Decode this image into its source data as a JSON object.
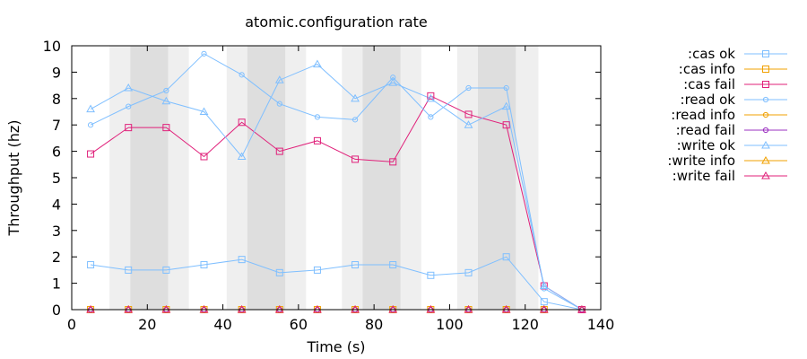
{
  "chart_data": {
    "type": "line",
    "title": "atomic.configuration rate",
    "xlabel": "Time (s)",
    "ylabel": "Throughput (hz)",
    "xlim": [
      0,
      140
    ],
    "ylim": [
      0,
      10
    ],
    "xticks": [
      0,
      20,
      40,
      60,
      80,
      100,
      120,
      140
    ],
    "yticks": [
      0,
      1,
      2,
      3,
      4,
      5,
      6,
      7,
      8,
      9,
      10
    ],
    "grid": false,
    "legend_position": "right",
    "shaded_bands": [
      {
        "from": 10,
        "to": 31,
        "shade": "light"
      },
      {
        "from": 15.5,
        "to": 25.5,
        "shade": "dark"
      },
      {
        "from": 41,
        "to": 62,
        "shade": "light"
      },
      {
        "from": 46.5,
        "to": 56.5,
        "shade": "dark"
      },
      {
        "from": 71.5,
        "to": 92.5,
        "shade": "light"
      },
      {
        "from": 77,
        "to": 87,
        "shade": "dark"
      },
      {
        "from": 102,
        "to": 123.5,
        "shade": "light"
      },
      {
        "from": 107.5,
        "to": 117.5,
        "shade": "dark"
      }
    ],
    "series": [
      {
        "name": ":cas ok",
        "color": "#7fbfff",
        "marker": "square",
        "x": [
          5,
          15,
          25,
          35,
          45,
          55,
          65,
          75,
          85,
          95,
          105,
          115,
          125,
          135
        ],
        "y": [
          1.7,
          1.5,
          1.5,
          1.7,
          1.9,
          1.4,
          1.5,
          1.7,
          1.7,
          1.3,
          1.4,
          2.0,
          0.3,
          0
        ]
      },
      {
        "name": ":cas info",
        "color": "#f0a000",
        "marker": "square",
        "x": [
          5,
          15,
          25,
          35,
          45,
          55,
          65,
          75,
          85,
          95,
          105,
          115,
          125,
          135
        ],
        "y": [
          0,
          0,
          0,
          0,
          0,
          0,
          0,
          0,
          0,
          0,
          0,
          0,
          0,
          0
        ]
      },
      {
        "name": ":cas fail",
        "color": "#e0207a",
        "marker": "square",
        "x": [
          5,
          15,
          25,
          35,
          45,
          55,
          65,
          75,
          85,
          95,
          105,
          115,
          125,
          135
        ],
        "y": [
          5.9,
          6.9,
          6.9,
          5.8,
          7.1,
          6.0,
          6.4,
          5.7,
          5.6,
          8.1,
          7.4,
          7.0,
          0.9,
          0
        ]
      },
      {
        "name": ":read ok",
        "color": "#7fbfff",
        "marker": "circle",
        "x": [
          5,
          15,
          25,
          35,
          45,
          55,
          65,
          75,
          85,
          95,
          105,
          115,
          125,
          135
        ],
        "y": [
          7.0,
          7.7,
          8.3,
          9.7,
          8.9,
          7.8,
          7.3,
          7.2,
          8.8,
          7.3,
          8.4,
          8.4,
          0.8,
          0
        ]
      },
      {
        "name": ":read info",
        "color": "#f0a000",
        "marker": "circle",
        "x": [
          5,
          15,
          25,
          35,
          45,
          55,
          65,
          75,
          85,
          95,
          105,
          115,
          125,
          135
        ],
        "y": [
          0,
          0,
          0,
          0,
          0,
          0,
          0,
          0,
          0,
          0,
          0,
          0,
          0,
          0
        ]
      },
      {
        "name": ":read fail",
        "color": "#9b30c0",
        "marker": "circle",
        "x": [
          5,
          15,
          25,
          35,
          45,
          55,
          65,
          75,
          85,
          95,
          105,
          115,
          125,
          135
        ],
        "y": [
          0,
          0,
          0,
          0,
          0,
          0,
          0,
          0,
          0,
          0,
          0,
          0,
          0,
          0
        ]
      },
      {
        "name": ":write ok",
        "color": "#7fbfff",
        "marker": "triangle",
        "x": [
          5,
          15,
          25,
          35,
          45,
          55,
          65,
          75,
          85,
          95,
          105,
          115,
          125,
          135
        ],
        "y": [
          7.6,
          8.4,
          7.9,
          7.5,
          5.8,
          8.7,
          9.3,
          8.0,
          8.6,
          8.0,
          7.0,
          7.7,
          0.9,
          0
        ]
      },
      {
        "name": ":write info",
        "color": "#f0a000",
        "marker": "triangle",
        "x": [
          5,
          15,
          25,
          35,
          45,
          55,
          65,
          75,
          85,
          95,
          105,
          115,
          125,
          135
        ],
        "y": [
          0,
          0,
          0,
          0,
          0,
          0,
          0,
          0,
          0,
          0,
          0,
          0,
          0,
          0
        ]
      },
      {
        "name": ":write fail",
        "color": "#e0207a",
        "marker": "triangle",
        "x": [
          5,
          15,
          25,
          35,
          45,
          55,
          65,
          75,
          85,
          95,
          105,
          115,
          125,
          135
        ],
        "y": [
          0,
          0,
          0,
          0,
          0,
          0,
          0,
          0,
          0,
          0,
          0,
          0,
          0,
          0
        ]
      }
    ]
  },
  "colors": {
    "band_light": "#efefef",
    "band_dark": "#dedede",
    "axis": "#000000"
  }
}
